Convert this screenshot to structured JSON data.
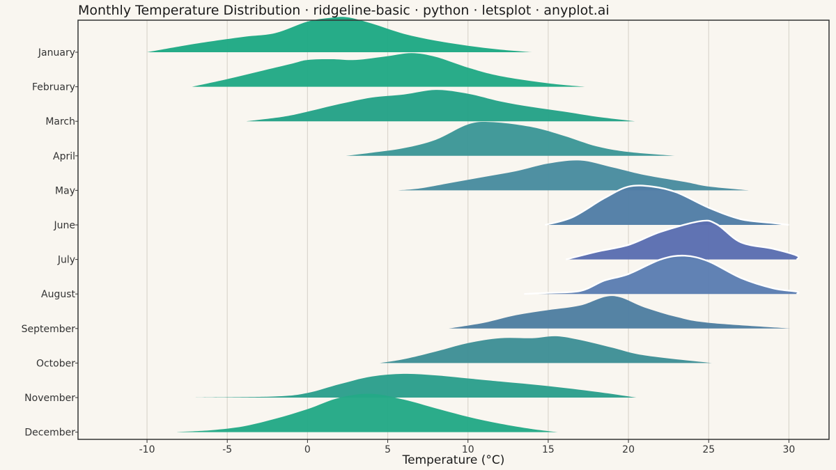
{
  "chart_data": {
    "type": "ridgeline",
    "title": "Monthly Temperature Distribution · ridgeline-basic · python · letsplot · anyplot.ai",
    "xlabel": "Temperature (°C)",
    "ylabel": "",
    "xlim": [
      -14.3,
      32.5
    ],
    "xticks": [
      -10,
      -5,
      0,
      5,
      10,
      15,
      20,
      25,
      30
    ],
    "xtick_labels": [
      "-10",
      "-5",
      "0",
      "5",
      "10",
      "15",
      "20",
      "25",
      "30"
    ],
    "grid": "vertical",
    "series": [
      {
        "name": "January",
        "color": "#1fa984",
        "points": [
          [
            -10,
            0
          ],
          [
            -7,
            0.22
          ],
          [
            -4,
            0.4
          ],
          [
            -2,
            0.5
          ],
          [
            0,
            0.8
          ],
          [
            1.5,
            0.9
          ],
          [
            2.5,
            0.91
          ],
          [
            4,
            0.75
          ],
          [
            6,
            0.48
          ],
          [
            8,
            0.3
          ],
          [
            10,
            0.17
          ],
          [
            12,
            0.07
          ],
          [
            14,
            0
          ]
        ]
      },
      {
        "name": "February",
        "color": "#22a985",
        "points": [
          [
            -7.2,
            0
          ],
          [
            -5,
            0.2
          ],
          [
            -3,
            0.4
          ],
          [
            -1,
            0.6
          ],
          [
            0,
            0.7
          ],
          [
            1.5,
            0.72
          ],
          [
            3,
            0.7
          ],
          [
            5,
            0.8
          ],
          [
            6.5,
            0.88
          ],
          [
            8,
            0.78
          ],
          [
            10,
            0.5
          ],
          [
            12,
            0.28
          ],
          [
            15,
            0.09
          ],
          [
            17.3,
            0
          ]
        ]
      },
      {
        "name": "March",
        "color": "#25a287",
        "points": [
          [
            -3.8,
            0
          ],
          [
            -1.5,
            0.12
          ],
          [
            0,
            0.25
          ],
          [
            2,
            0.45
          ],
          [
            4,
            0.62
          ],
          [
            6,
            0.7
          ],
          [
            8,
            0.82
          ],
          [
            10,
            0.72
          ],
          [
            12,
            0.52
          ],
          [
            14,
            0.37
          ],
          [
            16,
            0.25
          ],
          [
            18,
            0.12
          ],
          [
            20.4,
            0
          ]
        ]
      },
      {
        "name": "April",
        "color": "#3d9797",
        "points": [
          [
            2.4,
            0
          ],
          [
            4,
            0.08
          ],
          [
            6,
            0.2
          ],
          [
            8,
            0.42
          ],
          [
            10,
            0.82
          ],
          [
            11.5,
            0.88
          ],
          [
            14,
            0.75
          ],
          [
            16,
            0.52
          ],
          [
            18,
            0.25
          ],
          [
            20,
            0.1
          ],
          [
            22.9,
            0
          ]
        ]
      },
      {
        "name": "May",
        "color": "#498c9f",
        "points": [
          [
            5.6,
            0
          ],
          [
            7,
            0.05
          ],
          [
            9,
            0.2
          ],
          [
            11,
            0.35
          ],
          [
            13,
            0.5
          ],
          [
            15,
            0.7
          ],
          [
            17,
            0.78
          ],
          [
            19,
            0.6
          ],
          [
            21,
            0.4
          ],
          [
            23.5,
            0.22
          ],
          [
            25,
            0.1
          ],
          [
            27.5,
            0
          ]
        ]
      },
      {
        "name": "June",
        "color": "#527ea6",
        "points": [
          [
            14.8,
            0
          ],
          [
            16.5,
            0.2
          ],
          [
            18.5,
            0.7
          ],
          [
            20,
            1.0
          ],
          [
            21.5,
            1.0
          ],
          [
            23,
            0.85
          ],
          [
            25,
            0.45
          ],
          [
            27,
            0.15
          ],
          [
            29,
            0.05
          ],
          [
            30,
            0
          ]
        ]
      },
      {
        "name": "July",
        "color": "#5b6eb1",
        "points": [
          [
            16.1,
            0
          ],
          [
            18,
            0.2
          ],
          [
            20,
            0.38
          ],
          [
            22,
            0.72
          ],
          [
            24.5,
            1.0
          ],
          [
            25.5,
            0.92
          ],
          [
            27,
            0.45
          ],
          [
            29,
            0.28
          ],
          [
            30.5,
            0.1
          ],
          [
            30.5,
            0
          ]
        ]
      },
      {
        "name": "August",
        "color": "#5c7eb2",
        "points": [
          [
            13.5,
            0
          ],
          [
            15,
            0.03
          ],
          [
            17,
            0.08
          ],
          [
            18.5,
            0.35
          ],
          [
            20,
            0.52
          ],
          [
            22,
            0.9
          ],
          [
            23.5,
            1.0
          ],
          [
            25,
            0.85
          ],
          [
            27,
            0.42
          ],
          [
            29,
            0.15
          ],
          [
            30.5,
            0.06
          ],
          [
            30.5,
            0
          ]
        ]
      },
      {
        "name": "September",
        "color": "#4f7fa1",
        "points": [
          [
            8.8,
            0
          ],
          [
            11,
            0.15
          ],
          [
            13,
            0.35
          ],
          [
            15,
            0.48
          ],
          [
            17,
            0.6
          ],
          [
            19,
            0.85
          ],
          [
            21,
            0.55
          ],
          [
            23,
            0.3
          ],
          [
            25,
            0.15
          ],
          [
            30.1,
            0
          ]
        ]
      },
      {
        "name": "October",
        "color": "#3f8f96",
        "points": [
          [
            4.5,
            0
          ],
          [
            6,
            0.1
          ],
          [
            8,
            0.3
          ],
          [
            10,
            0.52
          ],
          [
            12,
            0.65
          ],
          [
            14,
            0.65
          ],
          [
            15.5,
            0.7
          ],
          [
            17,
            0.6
          ],
          [
            19,
            0.4
          ],
          [
            21,
            0.2
          ],
          [
            25.2,
            0
          ]
        ]
      },
      {
        "name": "November",
        "color": "#2c9f8c",
        "points": [
          [
            -7,
            0
          ],
          [
            -2,
            0.03
          ],
          [
            0,
            0.12
          ],
          [
            2,
            0.35
          ],
          [
            4,
            0.55
          ],
          [
            6,
            0.62
          ],
          [
            8,
            0.58
          ],
          [
            10,
            0.5
          ],
          [
            12,
            0.42
          ],
          [
            15,
            0.3
          ],
          [
            18,
            0.15
          ],
          [
            20.5,
            0
          ]
        ]
      },
      {
        "name": "December",
        "color": "#24a986",
        "points": [
          [
            -8.2,
            0
          ],
          [
            -6,
            0.05
          ],
          [
            -4,
            0.15
          ],
          [
            -2,
            0.35
          ],
          [
            0,
            0.6
          ],
          [
            2,
            0.9
          ],
          [
            4,
            1.0
          ],
          [
            6,
            0.85
          ],
          [
            8,
            0.62
          ],
          [
            10,
            0.4
          ],
          [
            12,
            0.22
          ],
          [
            14,
            0.08
          ],
          [
            15.6,
            0
          ]
        ]
      }
    ],
    "outlined_series": [
      "June",
      "July",
      "August"
    ]
  }
}
